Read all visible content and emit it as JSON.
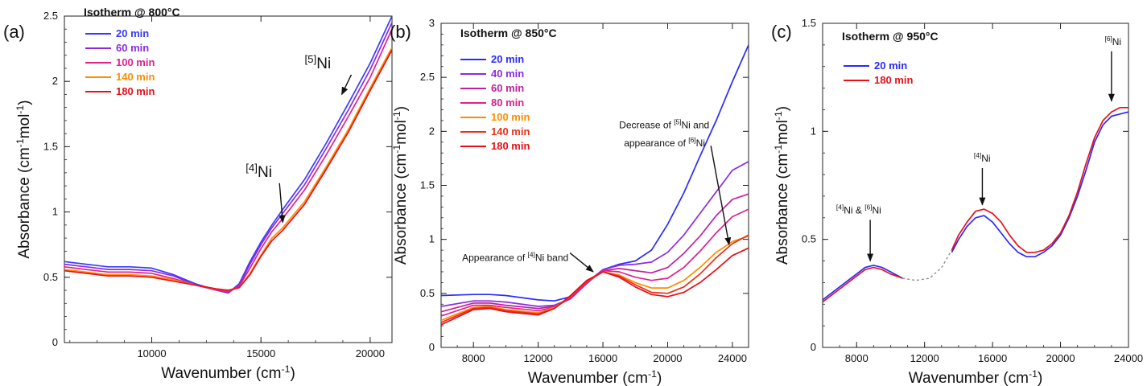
{
  "chart_data": [
    {
      "type": "line",
      "panel_label": "(a)",
      "title": "Isotherm @ 800°C",
      "xlabel": "Wavenumber (cm-1)",
      "ylabel": "Absorbance (cm-1mol-1)",
      "xlim": [
        6000,
        21000
      ],
      "ylim": [
        0,
        2.5
      ],
      "xticks": [
        10000,
        15000,
        20000
      ],
      "yticks": [
        0,
        0.5,
        1,
        1.5,
        2,
        2.5
      ],
      "legend_position": "top-left",
      "series": [
        {
          "name": "20 min",
          "color": "#3a3aff",
          "x": [
            6000,
            7000,
            8000,
            9000,
            10000,
            11000,
            12000,
            13000,
            13500,
            14000,
            14500,
            15000,
            15500,
            16000,
            17000,
            18000,
            19000,
            20000,
            21000
          ],
          "y": [
            0.62,
            0.6,
            0.58,
            0.58,
            0.57,
            0.52,
            0.45,
            0.4,
            0.38,
            0.45,
            0.62,
            0.77,
            0.9,
            1.02,
            1.25,
            1.53,
            1.83,
            2.14,
            2.5
          ]
        },
        {
          "name": "60 min",
          "color": "#8a2be2",
          "x": [
            6000,
            7000,
            8000,
            9000,
            10000,
            11000,
            12000,
            13000,
            13500,
            14000,
            14500,
            15000,
            15500,
            16000,
            17000,
            18000,
            19000,
            20000,
            21000
          ],
          "y": [
            0.6,
            0.58,
            0.56,
            0.56,
            0.55,
            0.51,
            0.44,
            0.4,
            0.38,
            0.44,
            0.6,
            0.75,
            0.88,
            0.99,
            1.21,
            1.49,
            1.78,
            2.09,
            2.45
          ]
        },
        {
          "name": "100 min",
          "color": "#e0218a",
          "x": [
            6000,
            7000,
            8000,
            9000,
            10000,
            11000,
            12000,
            13000,
            13500,
            14000,
            14500,
            15000,
            15500,
            16000,
            17000,
            18000,
            19000,
            20000,
            21000
          ],
          "y": [
            0.58,
            0.56,
            0.54,
            0.54,
            0.53,
            0.49,
            0.44,
            0.4,
            0.39,
            0.43,
            0.57,
            0.72,
            0.85,
            0.95,
            1.17,
            1.44,
            1.73,
            2.03,
            2.4
          ]
        },
        {
          "name": "140 min",
          "color": "#ff8c00",
          "x": [
            6000,
            7000,
            8000,
            9000,
            10000,
            11000,
            12000,
            13000,
            13500,
            14000,
            14500,
            15000,
            15500,
            16000,
            17000,
            18000,
            19000,
            20000,
            21000
          ],
          "y": [
            0.56,
            0.54,
            0.52,
            0.52,
            0.51,
            0.48,
            0.44,
            0.41,
            0.4,
            0.42,
            0.53,
            0.67,
            0.8,
            0.88,
            1.08,
            1.35,
            1.63,
            1.95,
            2.26
          ]
        },
        {
          "name": "180 min",
          "color": "#e8101a",
          "x": [
            6000,
            7000,
            8000,
            9000,
            10000,
            11000,
            12000,
            13000,
            13500,
            14000,
            14500,
            15000,
            15500,
            16000,
            17000,
            18000,
            19000,
            20000,
            21000
          ],
          "y": [
            0.55,
            0.53,
            0.51,
            0.51,
            0.5,
            0.47,
            0.44,
            0.41,
            0.4,
            0.42,
            0.52,
            0.66,
            0.78,
            0.86,
            1.06,
            1.33,
            1.61,
            1.93,
            2.24
          ]
        }
      ],
      "annotations": [
        {
          "sup": "[4]",
          "text": "Ni",
          "x": 14300,
          "y": 1.27,
          "ax": 16000,
          "ay": 0.92
        },
        {
          "sup": "[5]",
          "text": "Ni",
          "x": 17000,
          "y": 2.1,
          "ax": 18700,
          "ay": 1.9
        }
      ]
    },
    {
      "type": "line",
      "panel_label": "(b)",
      "title": "Isotherm @ 850°C",
      "xlabel": "Wavenumber (cm-1)",
      "ylabel": "Absorbance (cm-1mol-1)",
      "xlim": [
        6000,
        25000
      ],
      "ylim": [
        0,
        3
      ],
      "xticks": [
        8000,
        12000,
        16000,
        20000,
        24000
      ],
      "yticks": [
        0,
        0.5,
        1,
        1.5,
        2,
        2.5,
        3
      ],
      "legend_position": "top-left",
      "series": [
        {
          "name": "20 min",
          "color": "#2a2aff",
          "x": [
            6000,
            8000,
            9000,
            10000,
            12000,
            13000,
            14000,
            15000,
            16000,
            17000,
            18000,
            19000,
            20000,
            21000,
            22000,
            23000,
            24000,
            25000
          ],
          "y": [
            0.48,
            0.49,
            0.49,
            0.48,
            0.44,
            0.43,
            0.47,
            0.6,
            0.72,
            0.77,
            0.8,
            0.9,
            1.14,
            1.43,
            1.77,
            2.1,
            2.46,
            2.8
          ]
        },
        {
          "name": "40 min",
          "color": "#8a2be2",
          "x": [
            6000,
            8000,
            9000,
            10000,
            12000,
            13000,
            14000,
            15000,
            16000,
            17000,
            18000,
            19000,
            20000,
            21000,
            22000,
            23000,
            24000,
            25000
          ],
          "y": [
            0.38,
            0.43,
            0.43,
            0.42,
            0.38,
            0.39,
            0.45,
            0.59,
            0.72,
            0.76,
            0.77,
            0.79,
            0.88,
            1.04,
            1.24,
            1.44,
            1.64,
            1.72
          ]
        },
        {
          "name": "60 min",
          "color": "#c020a0",
          "x": [
            6000,
            8000,
            9000,
            10000,
            12000,
            13000,
            14000,
            15000,
            16000,
            17000,
            18000,
            19000,
            20000,
            21000,
            22000,
            23000,
            24000,
            25000
          ],
          "y": [
            0.33,
            0.41,
            0.41,
            0.39,
            0.36,
            0.38,
            0.45,
            0.6,
            0.71,
            0.73,
            0.71,
            0.69,
            0.74,
            0.87,
            1.03,
            1.22,
            1.37,
            1.42
          ]
        },
        {
          "name": "80 min",
          "color": "#e0218a",
          "x": [
            6000,
            8000,
            9000,
            10000,
            12000,
            13000,
            14000,
            15000,
            16000,
            17000,
            18000,
            19000,
            20000,
            21000,
            22000,
            23000,
            24000,
            25000
          ],
          "y": [
            0.29,
            0.39,
            0.39,
            0.37,
            0.34,
            0.37,
            0.46,
            0.6,
            0.71,
            0.7,
            0.65,
            0.62,
            0.64,
            0.74,
            0.89,
            1.06,
            1.21,
            1.28
          ]
        },
        {
          "name": "100 min",
          "color": "#ff8c00",
          "x": [
            6000,
            8000,
            9000,
            10000,
            12000,
            13000,
            14000,
            15000,
            16000,
            17000,
            18000,
            19000,
            20000,
            21000,
            22000,
            23000,
            24000,
            25000
          ],
          "y": [
            0.25,
            0.37,
            0.38,
            0.35,
            0.32,
            0.37,
            0.47,
            0.61,
            0.7,
            0.67,
            0.6,
            0.55,
            0.55,
            0.62,
            0.74,
            0.88,
            0.98,
            1.03
          ]
        },
        {
          "name": "140 min",
          "color": "#e8301a",
          "x": [
            6000,
            8000,
            9000,
            10000,
            12000,
            13000,
            14000,
            15000,
            16000,
            17000,
            18000,
            19000,
            20000,
            21000,
            22000,
            23000,
            24000,
            25000
          ],
          "y": [
            0.23,
            0.36,
            0.37,
            0.34,
            0.31,
            0.36,
            0.47,
            0.61,
            0.7,
            0.66,
            0.58,
            0.51,
            0.5,
            0.56,
            0.68,
            0.83,
            0.96,
            1.04
          ]
        },
        {
          "name": "180 min",
          "color": "#e8101a",
          "x": [
            6000,
            8000,
            9000,
            10000,
            12000,
            13000,
            14000,
            15000,
            16000,
            17000,
            18000,
            19000,
            20000,
            21000,
            22000,
            23000,
            24000,
            25000
          ],
          "y": [
            0.21,
            0.35,
            0.36,
            0.33,
            0.3,
            0.36,
            0.48,
            0.62,
            0.7,
            0.65,
            0.56,
            0.49,
            0.47,
            0.51,
            0.6,
            0.72,
            0.85,
            0.92
          ]
        }
      ],
      "annotations": [
        {
          "pre": "Appearance of ",
          "sup": "[4]",
          "text": "Ni band",
          "x": 7300,
          "y": 0.8,
          "ax": 15400,
          "ay": 0.7
        },
        {
          "pre": "Decrease of ",
          "sup": "[5]",
          "text": "Ni and",
          "x": 17000,
          "y": 2.03,
          "ax": 23800,
          "ay": 0.95
        },
        {
          "pre": "appearance of ",
          "sup": "[6]",
          "text": "Ni",
          "x": 17300,
          "y": 1.86
        }
      ]
    },
    {
      "type": "line",
      "panel_label": "(c)",
      "title": "Isotherm @ 950°C",
      "xlabel": "Wavenumber (cm-1)",
      "ylabel": "Absorbance (cm-1mol-1)",
      "xlim": [
        6000,
        24000
      ],
      "ylim": [
        0,
        1.5
      ],
      "xticks": [
        8000,
        12000,
        16000,
        20000,
        24000
      ],
      "yticks": [
        0,
        0.5,
        1,
        1.5
      ],
      "legend_position": "top-left",
      "series": [
        {
          "name": "20 min",
          "color": "#2a2aff",
          "x": [
            6000,
            7000,
            8000,
            8500,
            9000,
            9500,
            10000,
            10700
          ],
          "y": [
            0.22,
            0.28,
            0.34,
            0.37,
            0.38,
            0.37,
            0.35,
            0.32
          ]
        },
        {
          "name": "180 min",
          "color": "#e8101a",
          "x": [
            6000,
            7000,
            8000,
            8500,
            9000,
            9500,
            10000,
            10700
          ],
          "y": [
            0.21,
            0.27,
            0.33,
            0.36,
            0.37,
            0.36,
            0.34,
            0.32
          ]
        },
        {
          "name": "",
          "color": "#2a2aff",
          "x": [
            13600,
            14000,
            14500,
            15000,
            15500,
            16000,
            16500,
            17000,
            17500,
            18000,
            18500,
            19000,
            19500,
            20000,
            20500,
            21000,
            21500,
            22000,
            22500,
            23000,
            23500,
            24000
          ],
          "y": [
            0.44,
            0.5,
            0.56,
            0.6,
            0.61,
            0.58,
            0.53,
            0.48,
            0.44,
            0.42,
            0.42,
            0.44,
            0.47,
            0.52,
            0.6,
            0.7,
            0.82,
            0.95,
            1.03,
            1.07,
            1.08,
            1.09
          ]
        },
        {
          "name": "",
          "color": "#e8101a",
          "x": [
            13600,
            14000,
            14500,
            15000,
            15500,
            16000,
            16500,
            17000,
            17500,
            18000,
            18500,
            19000,
            19500,
            20000,
            20500,
            21000,
            21500,
            22000,
            22500,
            23000,
            23500,
            24000
          ],
          "y": [
            0.45,
            0.52,
            0.58,
            0.63,
            0.64,
            0.62,
            0.58,
            0.52,
            0.47,
            0.44,
            0.44,
            0.45,
            0.48,
            0.53,
            0.61,
            0.72,
            0.85,
            0.97,
            1.05,
            1.09,
            1.11,
            1.11
          ]
        },
        {
          "name": "",
          "color": "#8f8f8f",
          "dashed": true,
          "x": [
            10700,
            11500,
            12300,
            13000,
            13600
          ],
          "y": [
            0.32,
            0.31,
            0.32,
            0.37,
            0.45
          ]
        }
      ],
      "annotations": [
        {
          "sup": "[4]",
          "text": "Ni & ",
          "sup2": "[6]",
          "text2": "Ni",
          "x": 6800,
          "y": 0.62,
          "ax": 8800,
          "ay": 0.4
        },
        {
          "sup": "[4]",
          "text": "Ni",
          "x": 14900,
          "y": 0.86,
          "ax": 15400,
          "ay": 0.66
        },
        {
          "sup": "[6]",
          "text": "Ni",
          "x": 22600,
          "y": 1.4,
          "ax": 23000,
          "ay": 1.14
        }
      ]
    }
  ]
}
